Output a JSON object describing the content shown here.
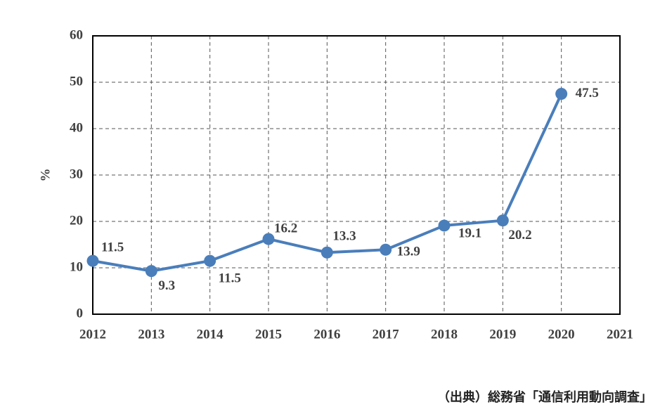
{
  "chart_data": {
    "type": "line",
    "y_label": "%",
    "x": [
      2012,
      2013,
      2014,
      2015,
      2016,
      2017,
      2018,
      2019,
      2020
    ],
    "series": [
      {
        "color": "#4a7ebb",
        "values": [
          11.5,
          9.3,
          11.5,
          16.2,
          13.3,
          13.9,
          19.1,
          20.2,
          47.5
        ]
      }
    ],
    "xlim": [
      2012,
      2021
    ],
    "xticks": [
      2012,
      2013,
      2014,
      2015,
      2016,
      2017,
      2018,
      2019,
      2020,
      2021
    ],
    "ylim": [
      0,
      60
    ],
    "yticks": [
      0,
      10,
      20,
      30,
      40,
      50,
      60
    ],
    "grid": true,
    "source": "（出典）総務省「通信利用動向調査」"
  }
}
